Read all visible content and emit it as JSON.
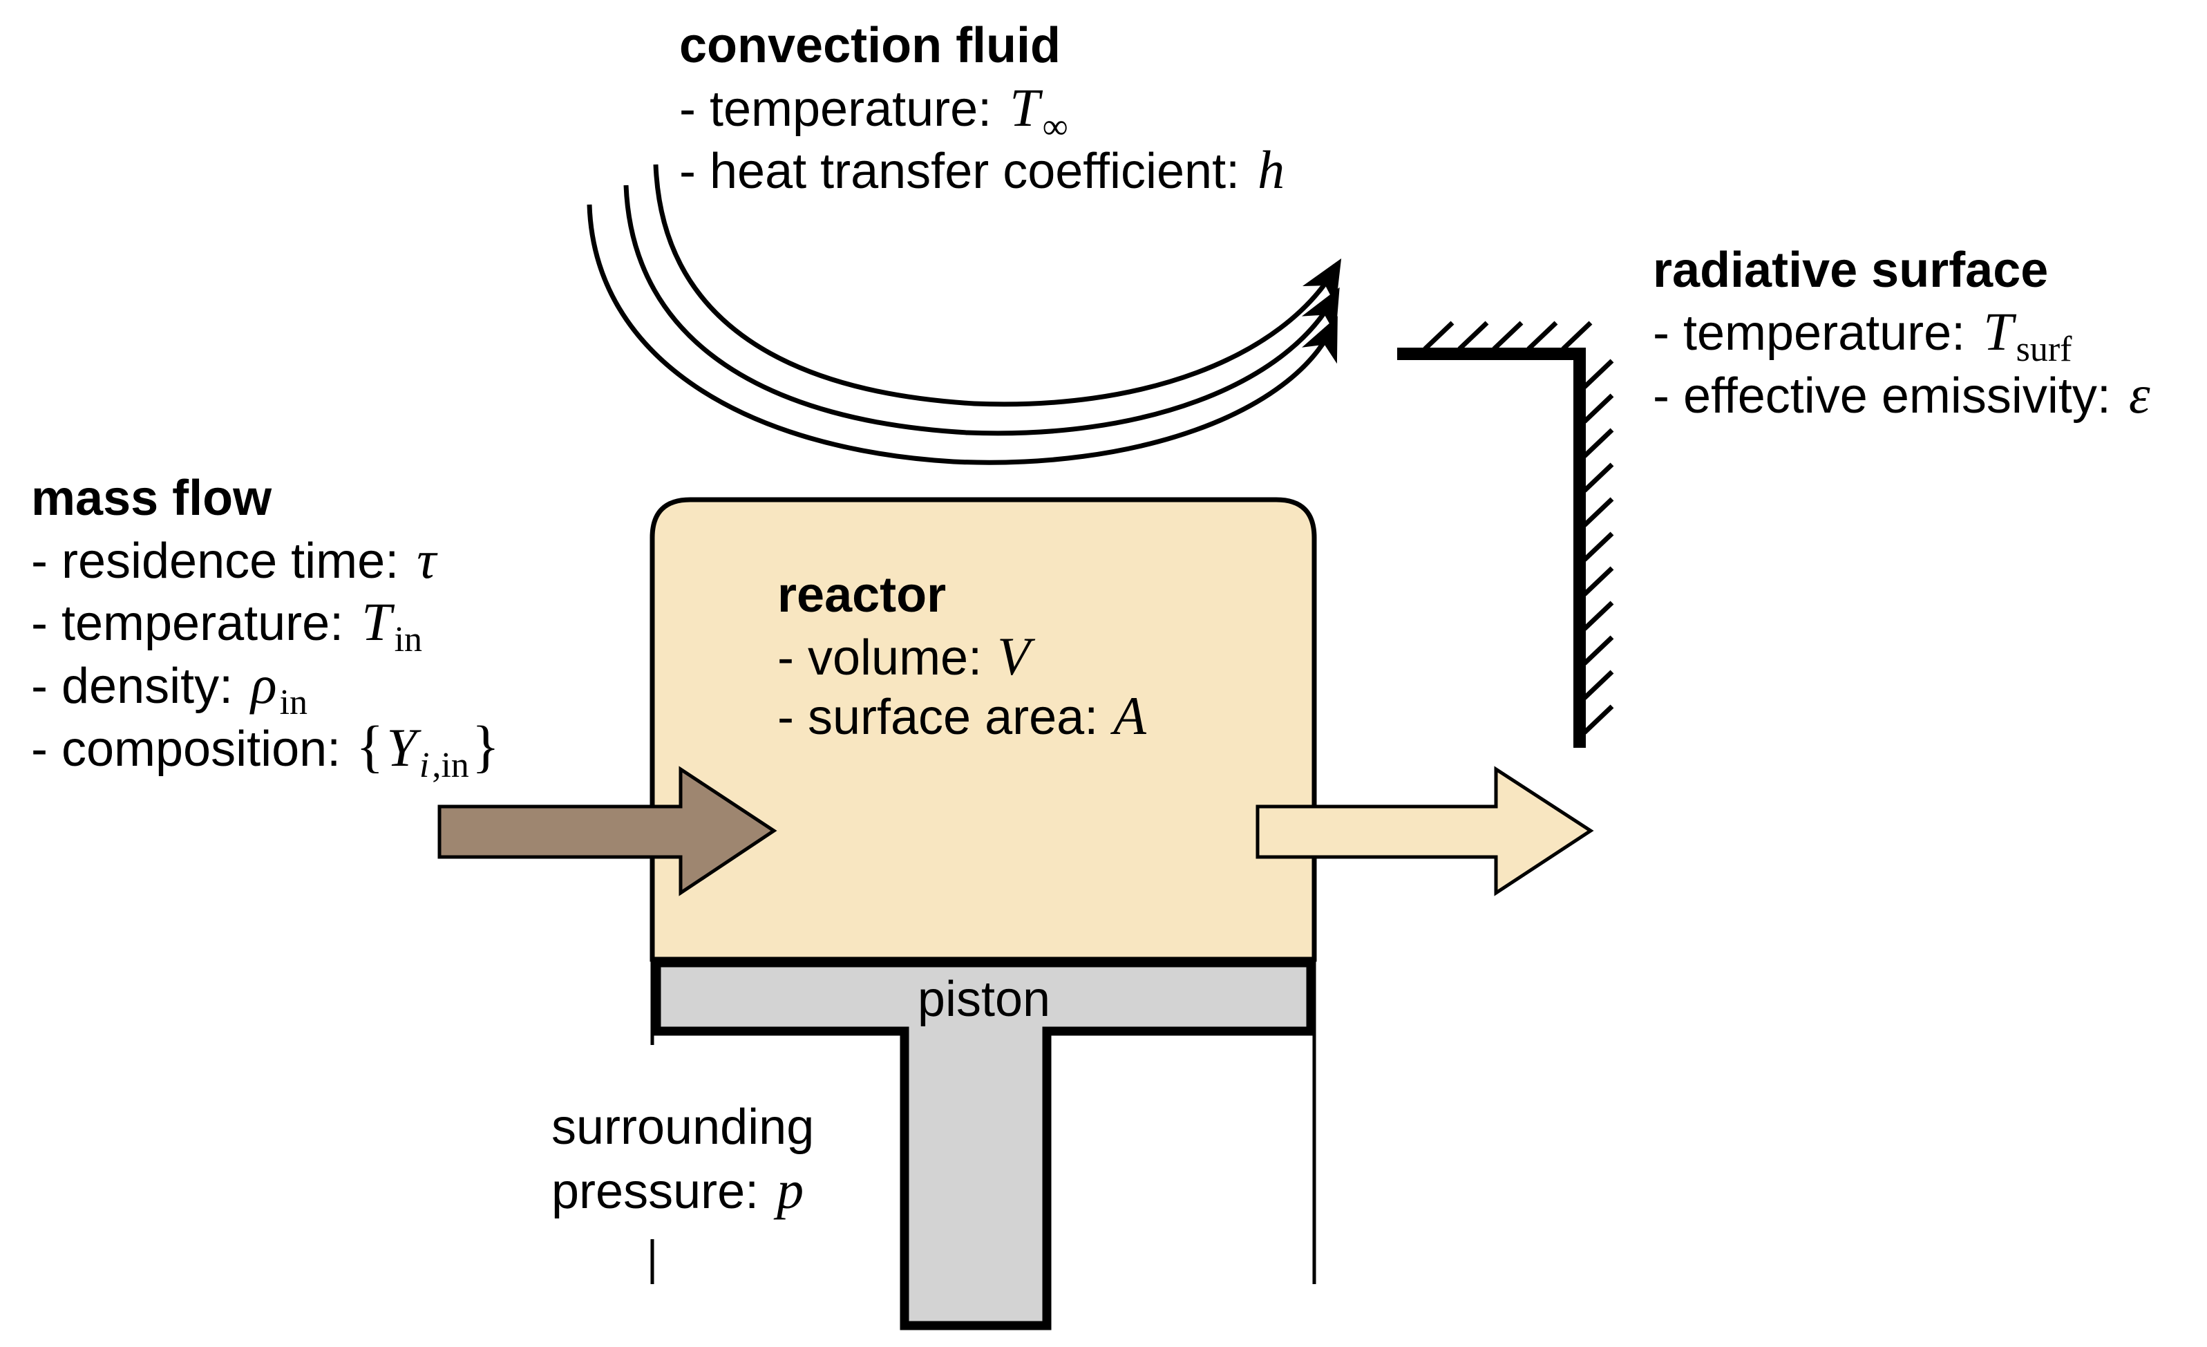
{
  "colors": {
    "reactor_fill": "#f8e6c1",
    "inflow_arrow_fill": "#9e8670",
    "outflow_arrow_fill": "#f8e6c1",
    "piston_fill": "#d3d3d3",
    "stroke": "#000000"
  },
  "convection": {
    "title": "convection fluid",
    "temperature_label": "- temperature:",
    "temperature_symbol": "T",
    "temperature_sub": "∞",
    "coefficient_label": "- heat transfer coefficient:",
    "coefficient_symbol": "h"
  },
  "radiative": {
    "title": "radiative surface",
    "temperature_label": "- temperature:",
    "temperature_symbol": "T",
    "temperature_sub": "surf",
    "emissivity_label": "- effective emissivity:",
    "emissivity_symbol": "ε"
  },
  "mass_flow": {
    "title": "mass flow",
    "residence_label": "- residence time:",
    "residence_symbol": "τ",
    "temperature_label": "- temperature:",
    "temperature_symbol": "T",
    "temperature_sub": "in",
    "density_label": "- density:",
    "density_symbol": "ρ",
    "density_sub": "in",
    "composition_label": "- composition:",
    "composition_brace_open": "{",
    "composition_symbol": "Y",
    "composition_sub_i": "i",
    "composition_sub_rest": ",in",
    "composition_brace_close": "}"
  },
  "reactor": {
    "title": "reactor",
    "volume_label": "- volume:",
    "volume_symbol": "V",
    "area_label": "- surface area:",
    "area_symbol": "A"
  },
  "piston": {
    "label": "piston"
  },
  "surroundings": {
    "line1": "surrounding",
    "line2": "pressure:",
    "pressure_symbol": "p"
  }
}
